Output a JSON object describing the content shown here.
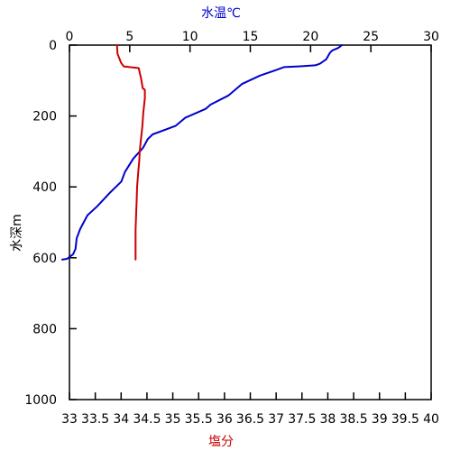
{
  "chart_data": {
    "type": "line",
    "y_axis": {
      "label": "水深m",
      "range": [
        0,
        1000
      ],
      "inverted": true,
      "ticks": [
        "0",
        "200",
        "400",
        "600",
        "800",
        "1000"
      ],
      "tick_values": [
        0,
        200,
        400,
        600,
        800,
        1000
      ]
    },
    "top_axis": {
      "label": "水温℃",
      "color": "#0000cc",
      "range": [
        0,
        30
      ],
      "ticks": [
        "0",
        "5",
        "10",
        "15",
        "20",
        "25",
        "30"
      ],
      "tick_values": [
        0,
        5,
        10,
        15,
        20,
        25,
        30
      ]
    },
    "bottom_axis": {
      "label": "塩分",
      "color": "#cc0000",
      "range": [
        33,
        40
      ],
      "ticks": [
        "33",
        "33.5",
        "34",
        "34.5",
        "35",
        "35.5",
        "36",
        "36.5",
        "37",
        "37.5",
        "38",
        "38.5",
        "39",
        "39.5",
        "40"
      ],
      "tick_values": [
        33,
        33.5,
        34,
        34.5,
        35,
        35.5,
        36,
        36.5,
        37,
        37.5,
        38,
        38.5,
        39,
        39.5,
        40
      ]
    },
    "grid": false,
    "series": [
      {
        "axis": "top",
        "color": "#0000cc",
        "points": [
          [
            22.6,
            0
          ],
          [
            22.3,
            8
          ],
          [
            21.8,
            15
          ],
          [
            21.6,
            22
          ],
          [
            21.3,
            40
          ],
          [
            20.8,
            52
          ],
          [
            20.4,
            57
          ],
          [
            19.0,
            60
          ],
          [
            17.8,
            62
          ],
          [
            17.0,
            72
          ],
          [
            15.8,
            86
          ],
          [
            14.3,
            110
          ],
          [
            13.2,
            142
          ],
          [
            11.7,
            168
          ],
          [
            11.3,
            180
          ],
          [
            9.6,
            205
          ],
          [
            8.8,
            228
          ],
          [
            6.9,
            252
          ],
          [
            6.5,
            265
          ],
          [
            6.1,
            290
          ],
          [
            5.3,
            320
          ],
          [
            4.6,
            358
          ],
          [
            4.3,
            385
          ],
          [
            3.4,
            415
          ],
          [
            2.3,
            455
          ],
          [
            1.5,
            480
          ],
          [
            0.9,
            518
          ],
          [
            0.6,
            545
          ],
          [
            0.5,
            575
          ],
          [
            0.3,
            590
          ],
          [
            -0.2,
            603
          ],
          [
            -0.6,
            605
          ]
        ]
      },
      {
        "axis": "bottom",
        "color": "#cc0000",
        "points": [
          [
            33.92,
            0
          ],
          [
            33.93,
            25
          ],
          [
            34.0,
            50
          ],
          [
            34.05,
            60
          ],
          [
            34.34,
            65
          ],
          [
            34.36,
            78
          ],
          [
            34.38,
            90
          ],
          [
            34.42,
            122
          ],
          [
            34.46,
            126
          ],
          [
            34.46,
            150
          ],
          [
            34.43,
            190
          ],
          [
            34.41,
            230
          ],
          [
            34.38,
            270
          ],
          [
            34.36,
            300
          ],
          [
            34.35,
            330
          ],
          [
            34.33,
            360
          ],
          [
            34.31,
            400
          ],
          [
            34.3,
            440
          ],
          [
            34.29,
            480
          ],
          [
            34.28,
            520
          ],
          [
            34.28,
            560
          ],
          [
            34.28,
            605
          ]
        ]
      }
    ]
  }
}
